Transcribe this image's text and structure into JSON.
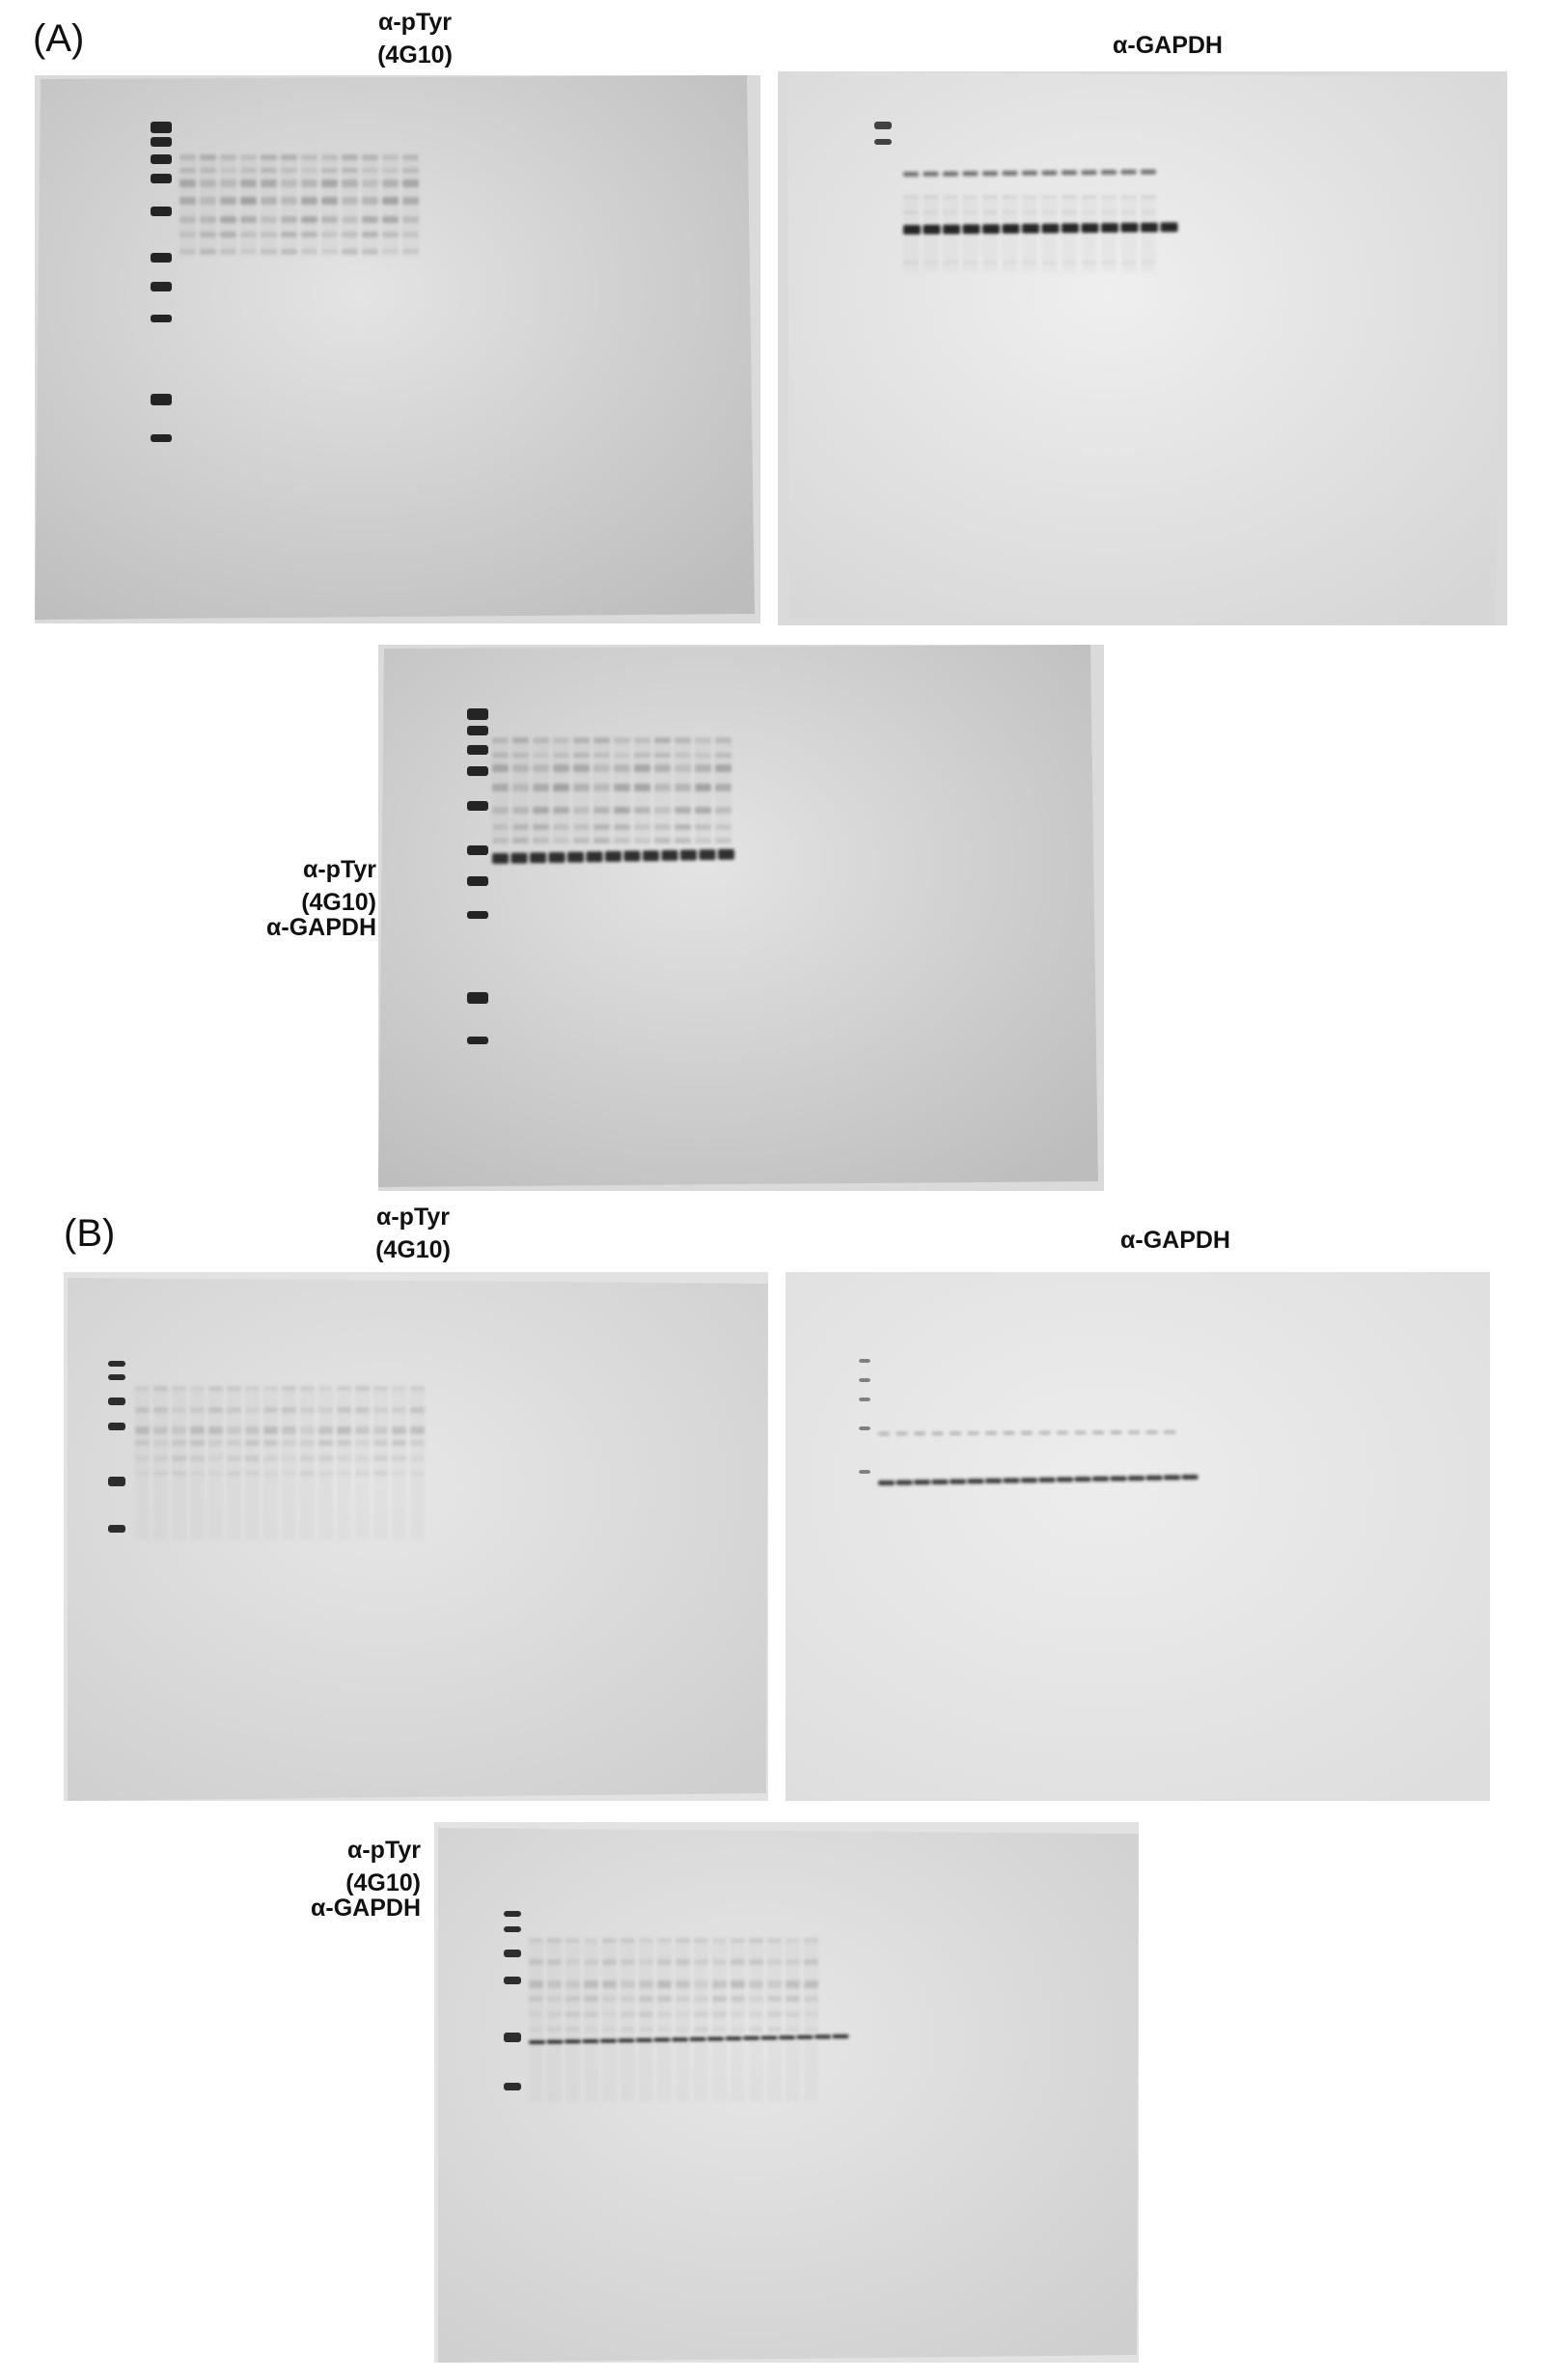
{
  "panels": [
    {
      "letter": "(A)",
      "ptyr_label": {
        "line1": "α-pTyr",
        "line2": "(4G10)"
      },
      "gapdh_label": "α-GAPDH",
      "merged_label": {
        "line1": "α-pTyr",
        "line2": "(4G10)",
        "line3": "α-GAPDH"
      }
    },
    {
      "letter": "(B)",
      "ptyr_label": {
        "line1": "α-pTyr",
        "line2": "(4G10)"
      },
      "gapdh_label": "α-GAPDH",
      "merged_label": {
        "line1": "α-pTyr",
        "line2": "(4G10)",
        "line3": "α-GAPDH"
      }
    }
  ],
  "colors": {
    "membrane_a": "#bdbdbd",
    "membrane_a_light": "#e4e4e4",
    "membrane_b": "#cfcfcf",
    "membrane_b_light": "#e6e7e6",
    "band_dark": "#1a1a1a",
    "band_mid": "#6f6f6f"
  }
}
